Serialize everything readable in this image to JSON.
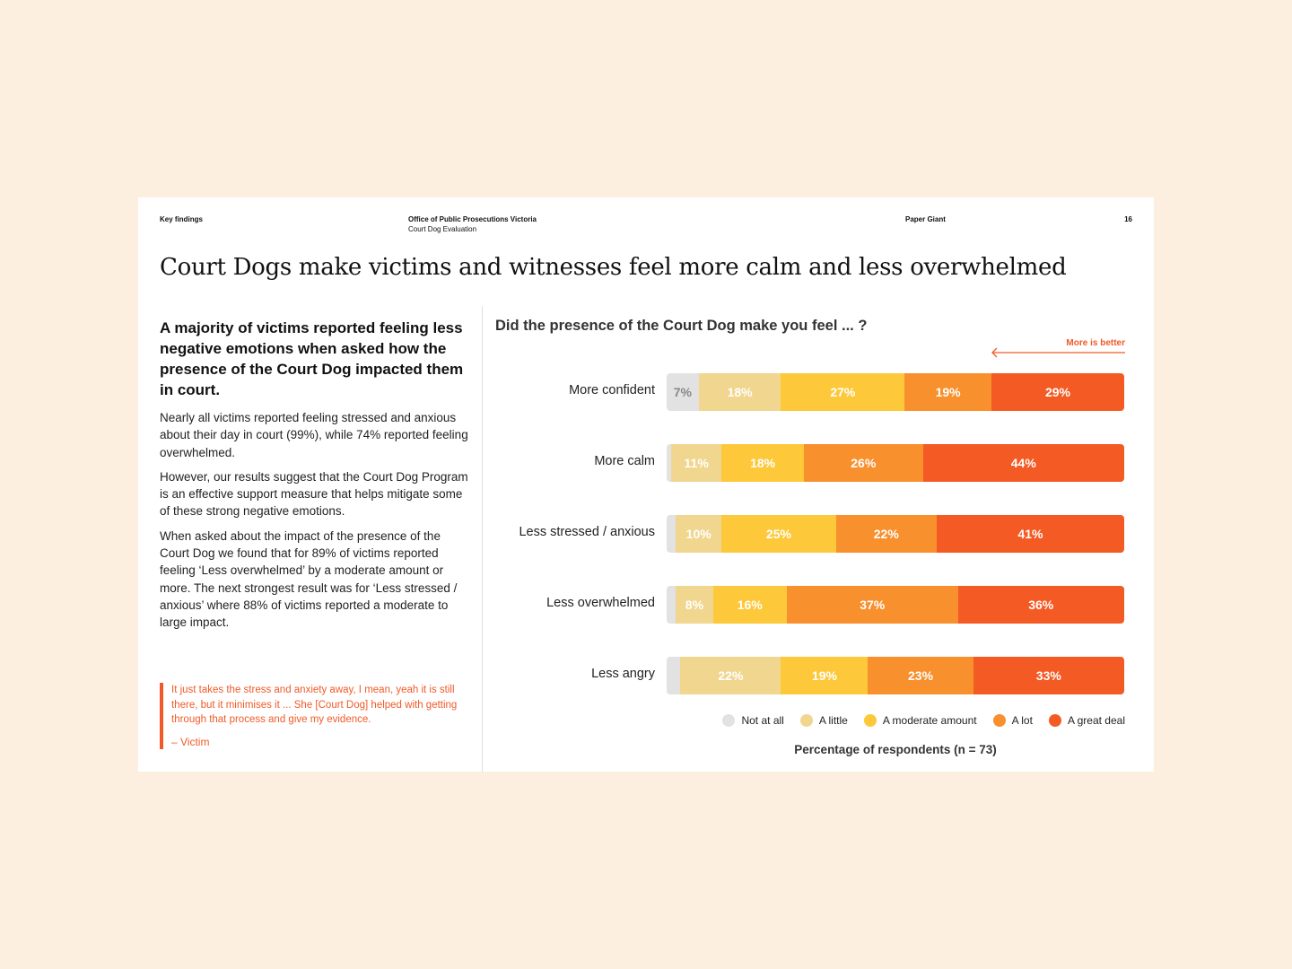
{
  "header": {
    "section": "Key findings",
    "org": "Office of Public Prosecutions Victoria",
    "report": "Court Dog Evaluation",
    "author": "Paper Giant",
    "page_number": "16"
  },
  "title": "Court Dogs make victims and witnesses feel more calm and less overwhelmed",
  "left": {
    "lead": "A majority of victims reported feeling less negative emotions when asked how the presence of the Court Dog impacted them in court.",
    "paragraphs": [
      "Nearly all victims reported feeling stressed and anxious about their day in court (99%), while 74% reported feeling overwhelmed.",
      "However, our results suggest that the Court Dog Program is an effective support measure that helps mitigate some of these strong negative emotions.",
      "When asked about the impact of the presence of the Court Dog we found that for 89% of victims reported feeling ‘Less overwhelmed’ by a moderate amount or more. The next strongest result was for ‘Less stressed / anxious’ where 88% of victims reported a moderate to large impact."
    ],
    "quote": "It just takes the stress and anxiety away, I mean, yeah it is still there, but it minimises it ... She [Court Dog] helped with getting through that process and give my evidence.",
    "quote_attribution": "– Victim"
  },
  "colors": {
    "not_at_all": "#e2e2e2",
    "a_little": "#f1d68f",
    "moderate": "#fdc83a",
    "a_lot": "#f8902e",
    "great_deal": "#f45a23"
  },
  "chart_data": {
    "type": "bar",
    "orientation": "horizontal",
    "stacked": true,
    "title": "Did the presence of the Court Dog make you feel ... ?",
    "annotation": "More is better",
    "xlabel": "Percentage of respondents (n = 73)",
    "categories": [
      "More confident",
      "More calm",
      "Less stressed / anxious",
      "Less overwhelmed",
      "Less angry"
    ],
    "series": [
      {
        "name": "Not at all",
        "values": [
          7,
          1,
          2,
          2,
          3
        ]
      },
      {
        "name": "A little",
        "values": [
          18,
          11,
          10,
          8,
          22
        ]
      },
      {
        "name": "A moderate amount",
        "values": [
          27,
          18,
          25,
          16,
          19
        ]
      },
      {
        "name": "A lot",
        "values": [
          19,
          26,
          22,
          37,
          23
        ]
      },
      {
        "name": "A great deal",
        "values": [
          29,
          44,
          41,
          36,
          33
        ]
      }
    ],
    "labels": [
      [
        "7%",
        "18%",
        "27%",
        "19%",
        "29%"
      ],
      [
        "",
        "11%",
        "18%",
        "26%",
        "44%"
      ],
      [
        "",
        "10%",
        "25%",
        "22%",
        "41%"
      ],
      [
        "",
        "8%",
        "16%",
        "37%",
        "36%"
      ],
      [
        "",
        "22%",
        "19%",
        "23%",
        "33%"
      ]
    ],
    "legend": [
      "Not at all",
      "A little",
      "A moderate amount",
      "A lot",
      "A great deal"
    ]
  }
}
